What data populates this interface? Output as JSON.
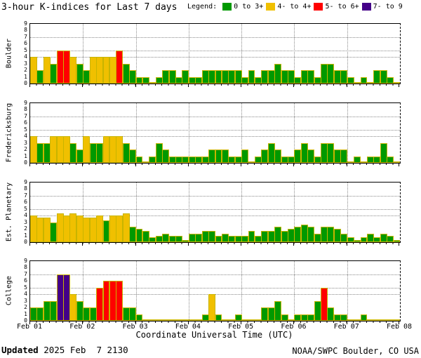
{
  "title": "3-hour K-indices for Last 7 days",
  "legend": {
    "label": "Legend:",
    "items": [
      {
        "label": "0 to 3+",
        "color": "#009900",
        "min": 0
      },
      {
        "label": "4- to 4+",
        "color": "#f0c000",
        "min": 3.67
      },
      {
        "label": "5- to 6+",
        "color": "#ff0000",
        "min": 4.67
      },
      {
        "label": "7- to 9",
        "color": "#440088",
        "min": 6.67
      }
    ]
  },
  "colors": {
    "bar_outline": "#c8b400",
    "grid": "#8a8a8a"
  },
  "x_axis": {
    "tick_labels": [
      "Feb 01",
      "Feb 02",
      "Feb 03",
      "Feb 04",
      "Feb 05",
      "Feb 06",
      "Feb 07",
      "Feb 08"
    ],
    "title": "Coordinate Universal Time (UTC)"
  },
  "y_axis": {
    "min": 0,
    "max": 9,
    "tick_labels": [
      "0",
      "1",
      "2",
      "3",
      "4",
      "5",
      "6",
      "7",
      "8",
      "9"
    ],
    "dotted_gridlines_at": [
      4,
      5,
      7
    ]
  },
  "footer": {
    "updated_label": "Updated",
    "updated_value": " 2025 Feb  7 2130",
    "credit": "NOAA/SWPC Boulder, CO USA"
  },
  "chart_data": {
    "type": "bar",
    "bars_per_day": 8,
    "days": 7,
    "ylim": [
      0,
      9
    ],
    "x_days": [
      "Feb 01",
      "Feb 02",
      "Feb 03",
      "Feb 04",
      "Feb 05",
      "Feb 06",
      "Feb 07",
      "Feb 08"
    ],
    "panels": [
      {
        "station": "Boulder",
        "values": [
          4,
          2,
          4,
          3,
          5,
          5,
          4,
          3,
          2,
          4,
          4,
          4,
          4,
          5,
          3,
          2,
          1,
          1,
          0,
          1,
          2,
          2,
          1,
          2,
          1,
          1,
          2,
          2,
          2,
          2,
          2,
          2,
          1,
          2,
          1,
          2,
          2,
          3,
          2,
          2,
          1,
          2,
          2,
          1,
          3,
          3,
          2,
          2,
          1,
          0,
          1,
          0,
          2,
          2,
          1,
          0
        ]
      },
      {
        "station": "Fredericksburg",
        "values": [
          4,
          3,
          3,
          4,
          4,
          4,
          3,
          2,
          4,
          3,
          3,
          4,
          4,
          4,
          3,
          2,
          1,
          0,
          1,
          3,
          2,
          1,
          1,
          1,
          1,
          1,
          1,
          2,
          2,
          2,
          1,
          1,
          2,
          0,
          1,
          2,
          3,
          2,
          1,
          1,
          2,
          3,
          2,
          1,
          3,
          3,
          2,
          2,
          0,
          1,
          0,
          1,
          1,
          3,
          1,
          0
        ]
      },
      {
        "station": "Est. Planetary",
        "values": [
          4,
          3.7,
          3.7,
          3,
          4.3,
          4,
          4.3,
          4,
          3.7,
          3.7,
          4,
          3.3,
          4,
          4,
          4.3,
          2.3,
          2,
          1.7,
          0.7,
          1,
          1.3,
          1,
          1,
          0.3,
          1.3,
          1.3,
          1.7,
          1.7,
          1,
          1.3,
          1,
          1,
          1,
          1.7,
          1,
          1.7,
          1.7,
          2.3,
          1.7,
          2,
          2.3,
          2.7,
          2.3,
          1.3,
          2.3,
          2.3,
          2,
          1.3,
          0.7,
          0.3,
          0.7,
          1.3,
          0.7,
          1.3,
          1,
          0.3
        ]
      },
      {
        "station": "College",
        "values": [
          2,
          2,
          3,
          3,
          7,
          7,
          4,
          3,
          2,
          2,
          5,
          6,
          6,
          6,
          2,
          2,
          1,
          0,
          0,
          0,
          0,
          0,
          0,
          0,
          0,
          0,
          1,
          4,
          1,
          0,
          0,
          1,
          0,
          0,
          0,
          2,
          2,
          3,
          1,
          0,
          1,
          1,
          1,
          3,
          5,
          2,
          1,
          1,
          0,
          0,
          1,
          0,
          0,
          0,
          0,
          0
        ]
      }
    ]
  }
}
